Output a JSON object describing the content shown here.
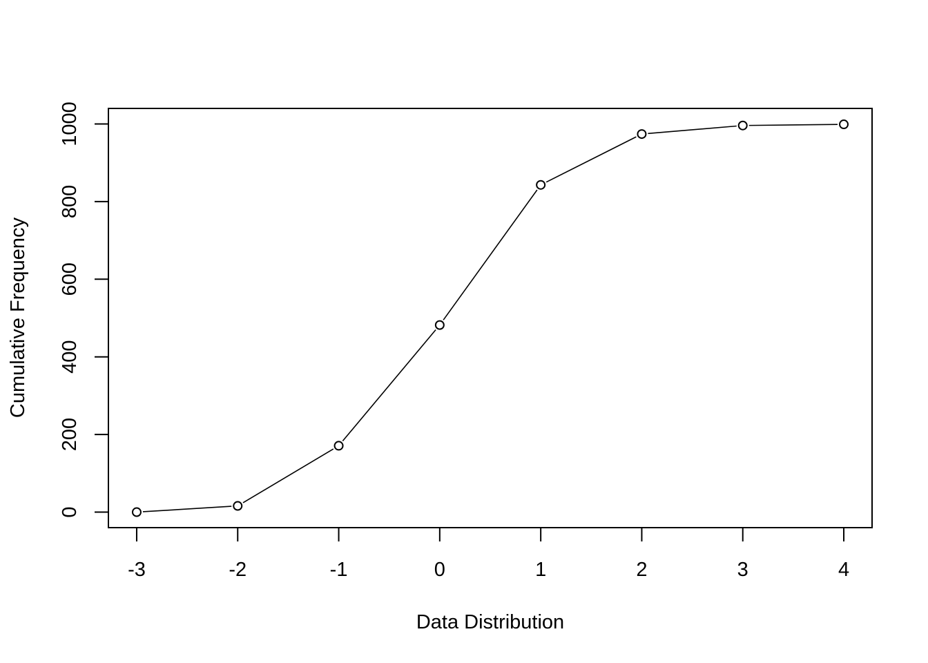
{
  "chart_data": {
    "type": "line",
    "title": "",
    "xlabel": "Data Distribution",
    "ylabel": "Cumulative Frequency",
    "x": [
      -3,
      -2,
      -1,
      0,
      1,
      2,
      3,
      4
    ],
    "series": [
      {
        "values": [
          0,
          16,
          171,
          482,
          843,
          974,
          996,
          999
        ]
      }
    ],
    "xlim": [
      -3.28,
      4.28
    ],
    "ylim": [
      -40,
      1040
    ],
    "xticks": [
      "-3",
      "-2",
      "-1",
      "0",
      "1",
      "2",
      "3",
      "4"
    ],
    "yticks": [
      "0",
      "200",
      "400",
      "600",
      "800",
      "1000"
    ],
    "ytick_values": [
      0,
      200,
      400,
      600,
      800,
      1000
    ],
    "marker": "open-circle",
    "grid": false,
    "legend": "none",
    "colors": {
      "line": "#000000",
      "marker": "#000000",
      "background": "#ffffff"
    }
  }
}
